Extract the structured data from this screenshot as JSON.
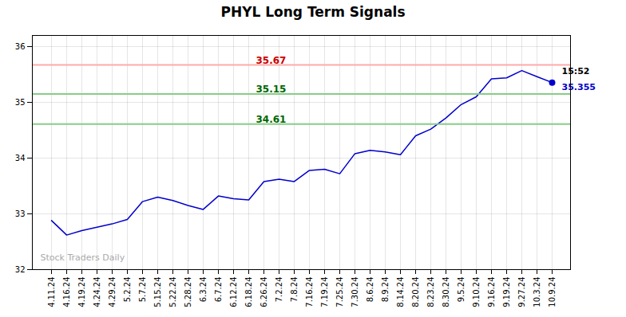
{
  "chart_data": {
    "type": "line",
    "title": "PHYL Long Term Signals",
    "categories": [
      "4.11.24",
      "4.16.24",
      "4.19.24",
      "4.24.24",
      "4.29.24",
      "5.2.24",
      "5.7.24",
      "5.15.24",
      "5.22.24",
      "5.28.24",
      "6.3.24",
      "6.7.24",
      "6.12.24",
      "6.18.24",
      "6.26.24",
      "7.2.24",
      "7.8.24",
      "7.16.24",
      "7.19.24",
      "7.25.24",
      "7.30.24",
      "8.6.24",
      "8.9.24",
      "8.14.24",
      "8.20.24",
      "8.23.24",
      "8.30.24",
      "9.5.24",
      "9.10.24",
      "9.16.24",
      "9.19.24",
      "9.27.24",
      "10.3.24",
      "10.9.24"
    ],
    "values": [
      32.88,
      32.62,
      32.7,
      32.76,
      32.82,
      32.9,
      33.22,
      33.3,
      33.24,
      33.15,
      33.08,
      33.32,
      33.27,
      33.25,
      33.58,
      33.62,
      33.58,
      33.78,
      33.8,
      33.72,
      34.08,
      34.14,
      34.11,
      34.06,
      34.4,
      34.52,
      34.72,
      34.96,
      35.1,
      35.42,
      35.44,
      35.57,
      35.46,
      35.355
    ],
    "color": "#0000cc",
    "ylim": [
      32.0,
      36.2
    ],
    "yticks": [
      32,
      33,
      34,
      35,
      36
    ],
    "grid": true,
    "marker": "circle",
    "hlines": [
      {
        "value": 35.67,
        "label": "35.67",
        "color": "#ffaaaa",
        "label_color": "#cc0000"
      },
      {
        "value": 35.15,
        "label": "35.15",
        "color": "#88cc88",
        "label_color": "#006600"
      },
      {
        "value": 34.61,
        "label": "34.61",
        "color": "#88cc88",
        "label_color": "#006600"
      }
    ],
    "annotations": [
      {
        "text": "15:52",
        "x": "10.9.24",
        "y": 35.355,
        "color": "#000000"
      },
      {
        "text": "35.355",
        "x": "10.9.24",
        "y": 35.355,
        "color": "#0000cc"
      },
      {
        "text": "Stock Traders Daily",
        "color": "#aaaaaa"
      }
    ]
  }
}
